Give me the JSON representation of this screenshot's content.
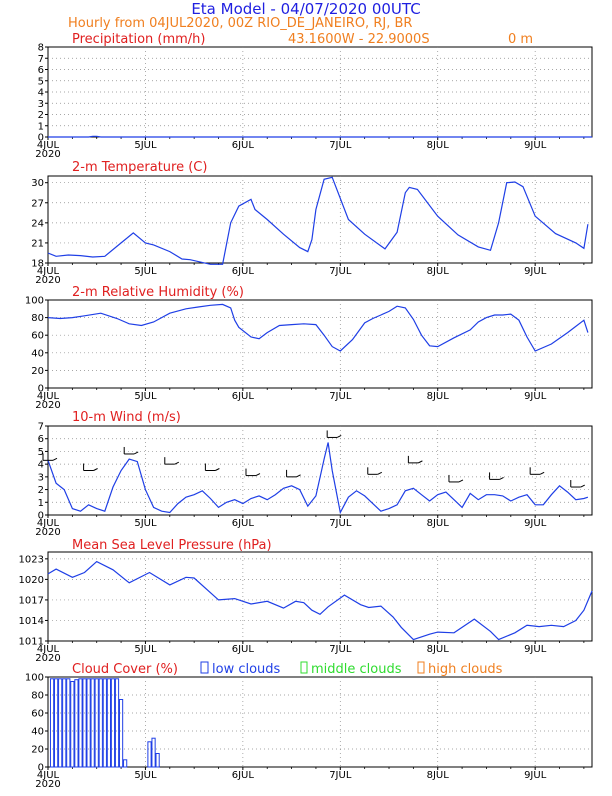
{
  "header": {
    "title": "Eta Model - 04/07/2020 00UTC",
    "line2": "Hourly from 04JUL2020, 00Z  RIO_DE_JANEIRO, RJ, BR",
    "coords": "43.1600W - 22.9000S",
    "elevation": "0 m"
  },
  "colors": {
    "title": "#1f1fe0",
    "orange": "#f07f1f",
    "red": "#e02020",
    "blue": "#1f3fe6",
    "green": "#2fdc2f",
    "grid": "#8a8a8a"
  },
  "x_axis": {
    "ticks": [
      {
        "label": "4JUL",
        "x": 0,
        "year": "2020"
      },
      {
        "label": "5JUL",
        "x": 24
      },
      {
        "label": "6JUL",
        "x": 48
      },
      {
        "label": "7JUL",
        "x": 72
      },
      {
        "label": "8JUL",
        "x": 96
      },
      {
        "label": "9JUL",
        "x": 120
      }
    ],
    "year": "2020",
    "range": [
      0,
      134
    ],
    "unit": "hours from 04JUL2020 00Z"
  },
  "chart_data": [
    {
      "id": "precip",
      "type": "line",
      "title": "Precipitation (mm/h)",
      "ylim": [
        0,
        8
      ],
      "yticks": [
        0,
        1,
        2,
        3,
        4,
        5,
        6,
        7,
        8
      ],
      "series": [
        {
          "name": "precipitation",
          "color": "#1f3fe6",
          "x": [
            0,
            10,
            11,
            12,
            13,
            134
          ],
          "y": [
            0,
            0,
            0.06,
            0.06,
            0,
            0
          ]
        }
      ]
    },
    {
      "id": "temp",
      "type": "line",
      "title": "2-m Temperature (C)",
      "ylim": [
        18,
        31
      ],
      "yticks": [
        18,
        21,
        24,
        27,
        30
      ],
      "series": [
        {
          "name": "temperature",
          "color": "#1f3fe6",
          "x": [
            0,
            2,
            5,
            8,
            11,
            14,
            18,
            19,
            21,
            24,
            26,
            30,
            33,
            35,
            40,
            43,
            45,
            47,
            50,
            51,
            54,
            58,
            62,
            64,
            65,
            66,
            68,
            70,
            74,
            78,
            83,
            86,
            88,
            89,
            91,
            96,
            101,
            106,
            109,
            111,
            113,
            115,
            117,
            120,
            125,
            130,
            132,
            133
          ],
          "y": [
            19.5,
            19,
            19.2,
            19.1,
            18.9,
            19,
            21,
            21.5,
            22.5,
            21,
            20.7,
            19.7,
            18.6,
            18.5,
            17.8,
            17.8,
            24,
            26.5,
            27.5,
            26,
            24.5,
            22.3,
            20.3,
            19.7,
            21.5,
            26,
            30.5,
            30.8,
            24.5,
            22.3,
            20.1,
            22.6,
            28.5,
            29.3,
            29,
            25,
            22.2,
            20.4,
            19.9,
            24,
            30,
            30.1,
            29.4,
            25,
            22.4,
            21,
            20.2,
            23.8
          ]
        }
      ]
    },
    {
      "id": "rh",
      "type": "line",
      "title": "2-m Relative Humidity (%)",
      "ylim": [
        0,
        100
      ],
      "yticks": [
        0,
        20,
        40,
        60,
        80,
        100
      ],
      "series": [
        {
          "name": "relative humidity",
          "color": "#1f3fe6",
          "x": [
            0,
            3,
            6,
            9,
            13,
            17,
            20,
            23,
            26,
            30,
            34,
            37,
            40,
            43,
            45,
            46,
            47,
            50,
            52,
            54,
            57,
            60,
            63,
            66,
            68,
            70,
            72,
            75,
            78,
            80,
            82,
            84,
            86,
            88,
            90,
            92,
            94,
            96,
            100,
            104,
            106,
            108,
            110,
            112,
            114,
            116,
            118,
            120,
            124,
            128,
            130,
            132,
            133
          ],
          "y": [
            80,
            79,
            80,
            82,
            85,
            79,
            73,
            71,
            75,
            85,
            90,
            92,
            94,
            95,
            91,
            77,
            69,
            58,
            56,
            63,
            71,
            72,
            73,
            72,
            60,
            47,
            42,
            55,
            74,
            79,
            83,
            87,
            93,
            91,
            78,
            60,
            48,
            47,
            57,
            66,
            75,
            80,
            83,
            83,
            84,
            77,
            58,
            42,
            50,
            63,
            70,
            77,
            63
          ]
        }
      ]
    },
    {
      "id": "wind",
      "type": "line",
      "title": "10-m Wind (m/s)",
      "ylim": [
        0,
        7
      ],
      "yticks": [
        0,
        1,
        2,
        3,
        4,
        5,
        6,
        7
      ],
      "series": [
        {
          "name": "wind speed",
          "color": "#1f3fe6",
          "x": [
            0,
            2,
            4,
            6,
            8,
            10,
            12,
            14,
            16,
            18,
            20,
            22,
            24,
            26,
            28,
            30,
            32,
            34,
            36,
            38,
            40,
            42,
            44,
            46,
            48,
            50,
            52,
            54,
            56,
            58,
            60,
            62,
            64,
            66,
            68,
            69,
            70,
            72,
            74,
            76,
            78,
            80,
            82,
            84,
            86,
            88,
            90,
            92,
            94,
            96,
            98,
            100,
            102,
            104,
            106,
            108,
            110,
            112,
            114,
            116,
            118,
            120,
            122,
            124,
            126,
            128,
            130,
            132,
            133
          ],
          "y": [
            4.3,
            2.5,
            2,
            0.5,
            0.3,
            0.8,
            0.5,
            0.3,
            2.2,
            3.5,
            4.4,
            4.2,
            2,
            0.6,
            0.3,
            0.2,
            0.9,
            1.4,
            1.6,
            1.9,
            1.3,
            0.6,
            1,
            1.2,
            0.9,
            1.3,
            1.5,
            1.2,
            1.6,
            2.1,
            2.3,
            2,
            0.7,
            1.5,
            4.4,
            5.7,
            3.5,
            0.2,
            1.4,
            1.9,
            1.5,
            0.9,
            0.3,
            0.5,
            0.8,
            1.9,
            2.1,
            1.6,
            1.1,
            1.6,
            1.8,
            1.2,
            0.6,
            1.7,
            1.2,
            1.6,
            1.6,
            1.5,
            1.1,
            1.4,
            1.6,
            0.8,
            0.8,
            1.6,
            2.3,
            1.8,
            1.2,
            1.3,
            1.4
          ]
        },
        {
          "name": "wind barbs",
          "color": "#000000",
          "x": [
            0,
            10,
            20,
            30,
            40,
            50,
            60,
            70,
            80,
            90,
            100,
            110,
            120,
            130
          ],
          "y": [
            4.3,
            3.5,
            4.8,
            4,
            3.5,
            3.1,
            3.0,
            6.1,
            3.2,
            4.1,
            2.6,
            2.8,
            3.2,
            2.2
          ]
        }
      ]
    },
    {
      "id": "mslp",
      "type": "line",
      "title": "Mean Sea Level Pressure (hPa)",
      "ylim": [
        1011,
        1024
      ],
      "yticks": [
        1011,
        1014,
        1017,
        1020,
        1023
      ],
      "series": [
        {
          "name": "mslp",
          "color": "#1f3fe6",
          "x": [
            0,
            2,
            6,
            9,
            12,
            16,
            20,
            25,
            30,
            34,
            36,
            42,
            46,
            50,
            54,
            58,
            61,
            63,
            65,
            67,
            69,
            73,
            77,
            79,
            82,
            85,
            87,
            90,
            94,
            96,
            100,
            105,
            109,
            111,
            115,
            118,
            121,
            124,
            127,
            130,
            132,
            134
          ],
          "y": [
            1020.8,
            1021.5,
            1020.3,
            1021,
            1022.6,
            1021.4,
            1019.5,
            1021,
            1019.2,
            1020.3,
            1020.2,
            1017,
            1017.2,
            1016.4,
            1016.8,
            1015.8,
            1016.8,
            1016.6,
            1015.5,
            1014.9,
            1016,
            1017.7,
            1016.3,
            1015.9,
            1016.1,
            1014.5,
            1013,
            1011.2,
            1012,
            1012.3,
            1012.2,
            1014.2,
            1012.4,
            1011.2,
            1012.2,
            1013.3,
            1013.1,
            1013.3,
            1013.1,
            1014,
            1015.5,
            1018.3
          ]
        }
      ]
    },
    {
      "id": "cloud",
      "type": "bar",
      "title": "Cloud Cover (%)",
      "legend": [
        "low clouds",
        "middle clouds",
        "high clouds"
      ],
      "ylim": [
        0,
        100
      ],
      "yticks": [
        0,
        20,
        40,
        60,
        80,
        100
      ],
      "series": [
        {
          "name": "low clouds",
          "color": "#1f3fe6",
          "x": [
            1,
            2,
            3,
            4,
            5,
            6,
            7,
            8,
            9,
            10,
            11,
            12,
            13,
            14,
            15,
            16,
            17,
            18,
            19,
            25,
            26,
            27
          ],
          "values": [
            98,
            98,
            98,
            98,
            98,
            95,
            97,
            98,
            98,
            98,
            98,
            98,
            98,
            98,
            98,
            98,
            98,
            75,
            8,
            28,
            32,
            15
          ]
        }
      ]
    }
  ]
}
